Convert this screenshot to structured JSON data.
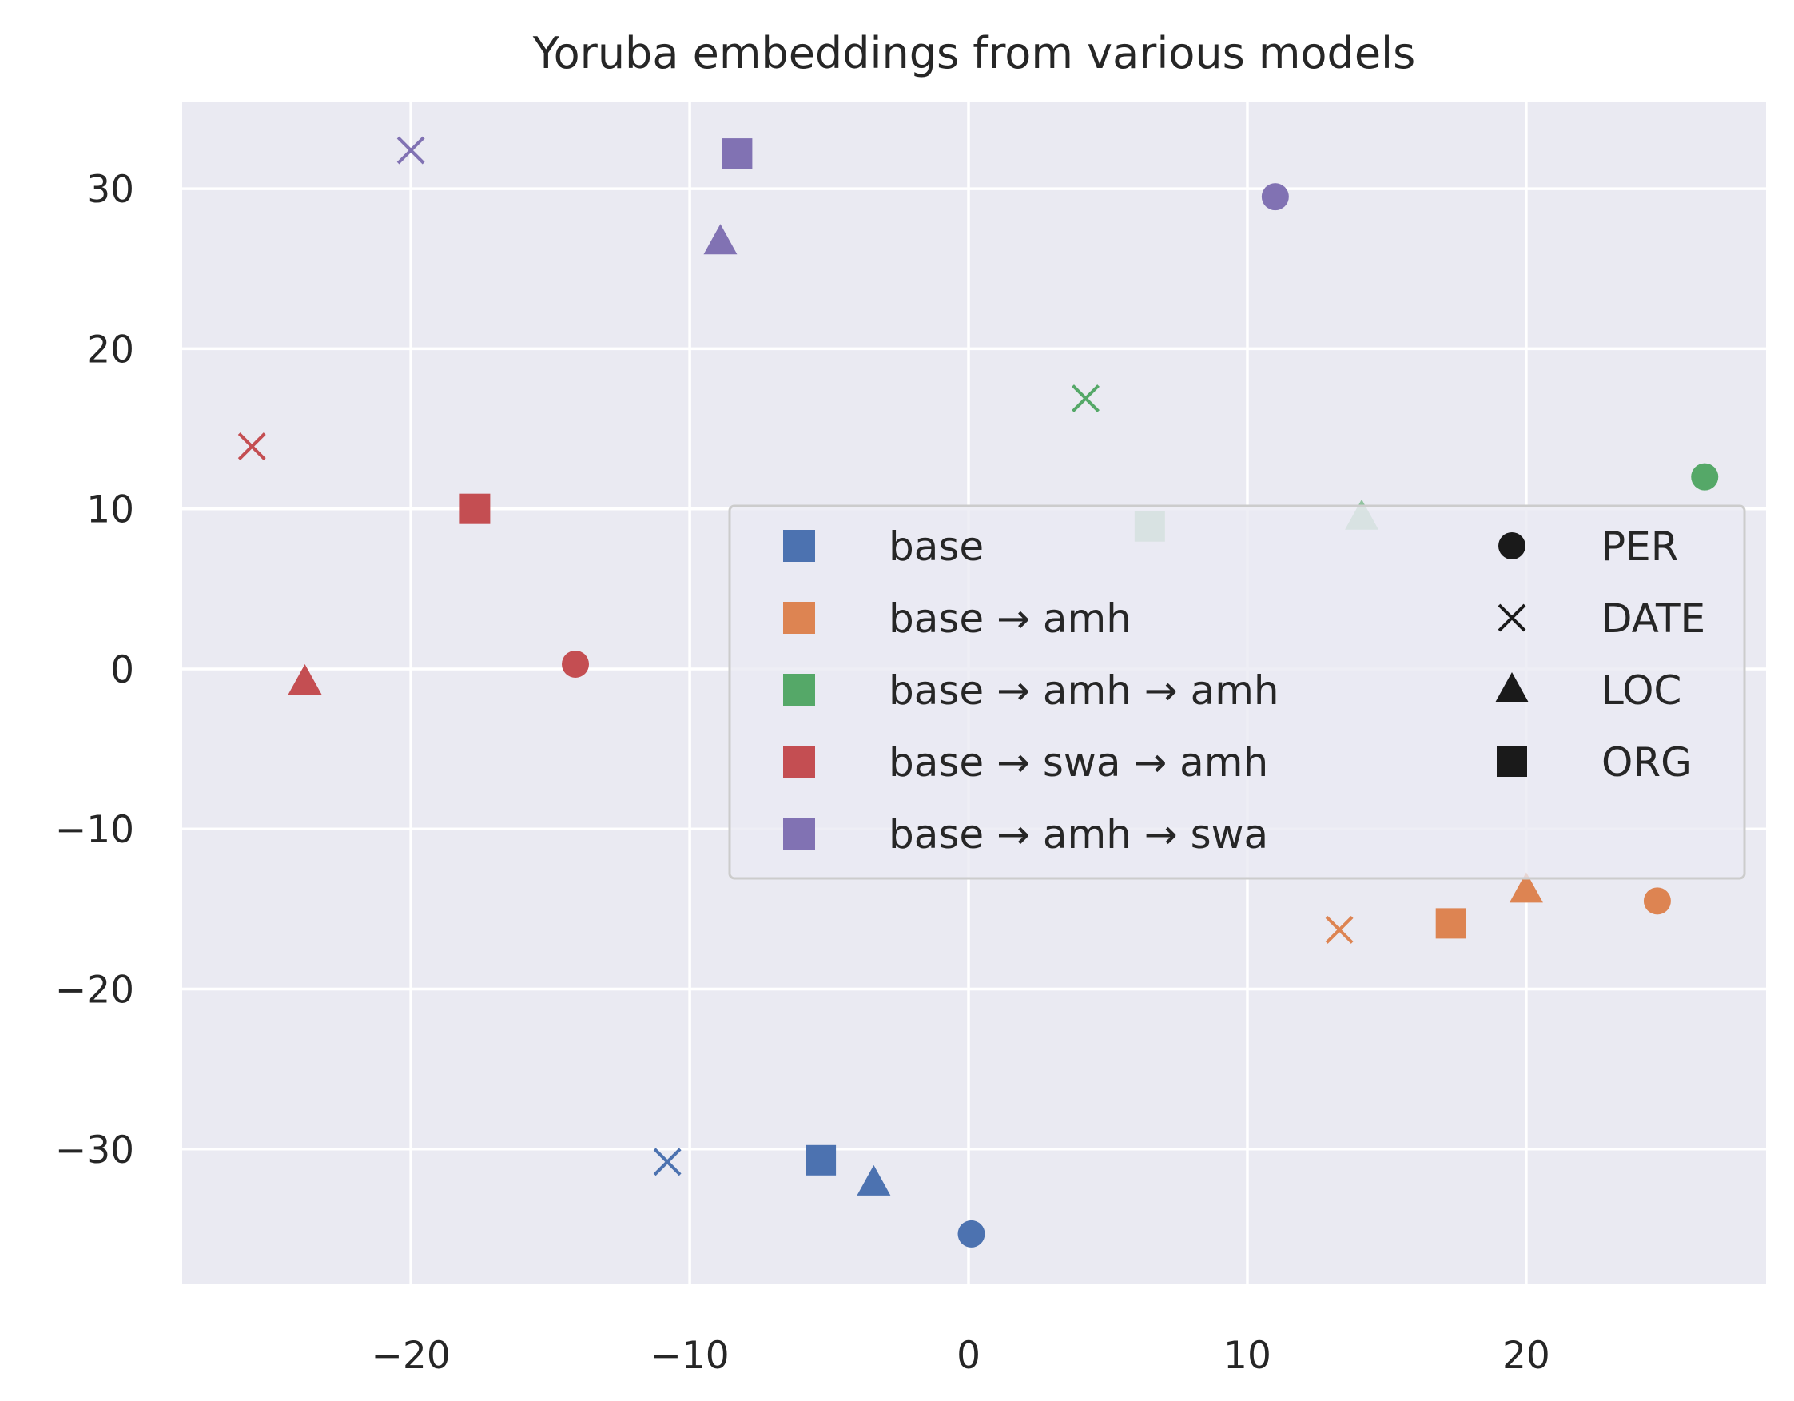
{
  "chart_data": {
    "type": "scatter",
    "title": "Yoruba embeddings from various models",
    "xlabel": "",
    "ylabel": "",
    "xlim": [
      -28.2,
      28.6
    ],
    "ylim": [
      -38.4,
      35.4
    ],
    "xticks": [
      -20,
      -10,
      0,
      10,
      20
    ],
    "yticks": [
      30,
      20,
      10,
      0,
      -10,
      -20,
      -30
    ],
    "xtick_labels": [
      "−20",
      "−10",
      "0",
      "10",
      "20"
    ],
    "ytick_labels": [
      "30",
      "20",
      "10",
      "0",
      "−10",
      "−20",
      "−30"
    ],
    "grid": true,
    "legend_position": "center-right",
    "series": [
      {
        "name": "base",
        "color": "#4c72b0",
        "points": [
          {
            "label": "PER",
            "x": 0.1,
            "y": -35.3
          },
          {
            "label": "DATE",
            "x": -10.8,
            "y": -30.8
          },
          {
            "label": "LOC",
            "x": -3.4,
            "y": -32.1
          },
          {
            "label": "ORG",
            "x": -5.3,
            "y": -30.7
          }
        ]
      },
      {
        "name": "base → amh",
        "color": "#dd8452",
        "points": [
          {
            "label": "PER",
            "x": 24.7,
            "y": -14.5
          },
          {
            "label": "DATE",
            "x": 13.3,
            "y": -16.3
          },
          {
            "label": "LOC",
            "x": 20.0,
            "y": -13.8
          },
          {
            "label": "ORG",
            "x": 17.3,
            "y": -15.9
          }
        ]
      },
      {
        "name": "base → amh → amh",
        "color": "#55a868",
        "points": [
          {
            "label": "PER",
            "x": 26.4,
            "y": 12.0
          },
          {
            "label": "DATE",
            "x": 4.2,
            "y": 16.9
          },
          {
            "label": "LOC",
            "x": 14.1,
            "y": 9.5
          },
          {
            "label": "ORG",
            "x": 6.5,
            "y": 8.9
          }
        ]
      },
      {
        "name": "base → swa → amh",
        "color": "#c44e52",
        "points": [
          {
            "label": "PER",
            "x": -14.1,
            "y": 0.3
          },
          {
            "label": "DATE",
            "x": -25.7,
            "y": 13.9
          },
          {
            "label": "LOC",
            "x": -23.8,
            "y": -0.8
          },
          {
            "label": "ORG",
            "x": -17.7,
            "y": 10.0
          }
        ]
      },
      {
        "name": "base → amh → swa",
        "color": "#8172b3",
        "points": [
          {
            "label": "PER",
            "x": 11.0,
            "y": 29.5
          },
          {
            "label": "DATE",
            "x": -20.0,
            "y": 32.4
          },
          {
            "label": "LOC",
            "x": -8.9,
            "y": 26.7
          },
          {
            "label": "ORG",
            "x": -8.3,
            "y": 32.2
          }
        ]
      }
    ],
    "legend": {
      "models": [
        "base",
        "base → amh",
        "base → amh → amh",
        "base → swa → amh",
        "base → amh → swa"
      ],
      "entities": [
        {
          "label": "PER",
          "marker": "circle"
        },
        {
          "label": "DATE",
          "marker": "x"
        },
        {
          "label": "LOC",
          "marker": "triangle"
        },
        {
          "label": "ORG",
          "marker": "square"
        }
      ]
    }
  }
}
